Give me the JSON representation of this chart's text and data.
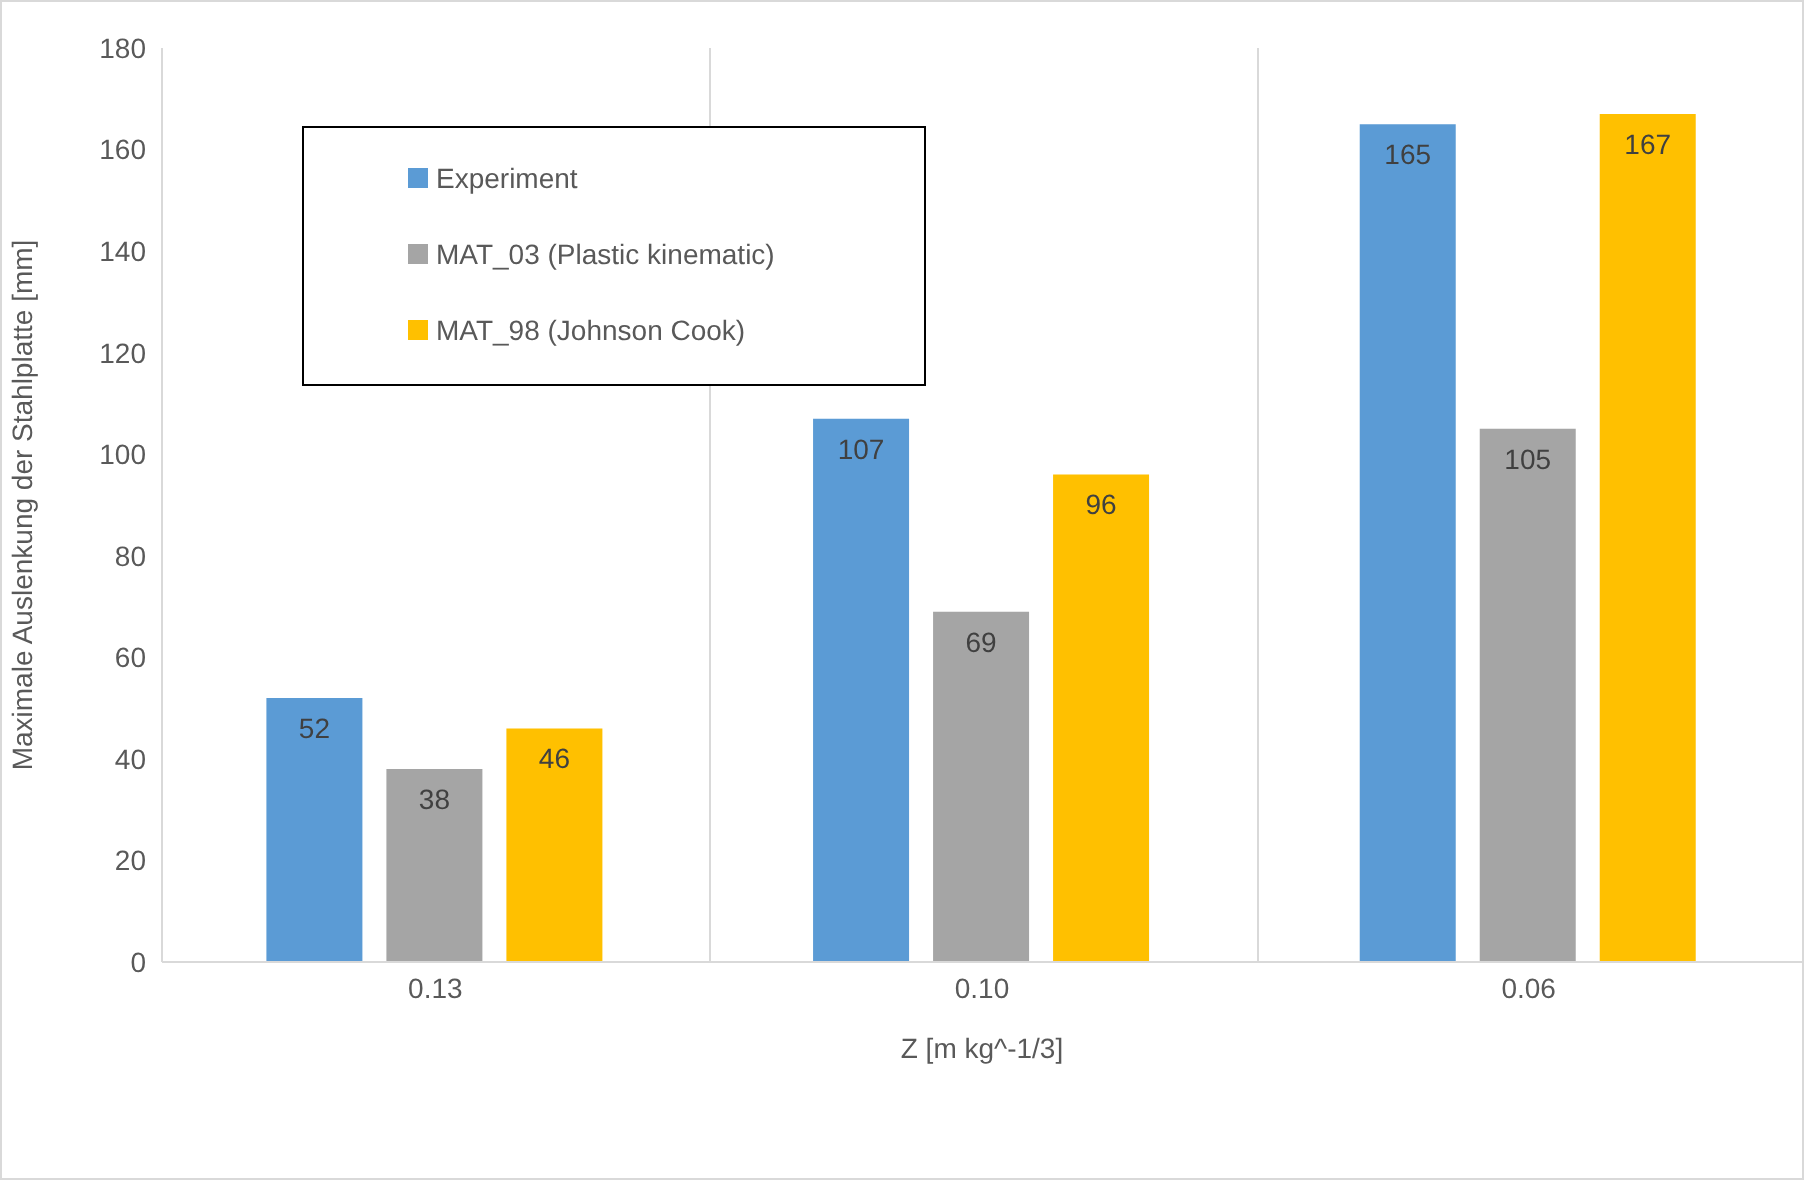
{
  "chart_data": {
    "type": "bar",
    "xlabel": "Z [m kg^-1/3]",
    "ylabel": "Maximale Auslenkung der Stahlplatte [mm]",
    "categories": [
      "0.13",
      "0.10",
      "0.06"
    ],
    "series": [
      {
        "name": "Experiment",
        "color": "#5b9bd5",
        "values": [
          52,
          107,
          165
        ]
      },
      {
        "name": "MAT_03 (Plastic kinematic)",
        "color": "#a5a5a5",
        "values": [
          38,
          69,
          105
        ]
      },
      {
        "name": "MAT_98 (Johnson Cook)",
        "color": "#ffc000",
        "values": [
          46,
          96,
          167
        ]
      }
    ],
    "ylim": [
      0,
      180
    ],
    "yticks": [
      0,
      20,
      40,
      60,
      80,
      100,
      120,
      140,
      160,
      180
    ],
    "grid": "x",
    "legend": "top left",
    "data_labels": true
  }
}
